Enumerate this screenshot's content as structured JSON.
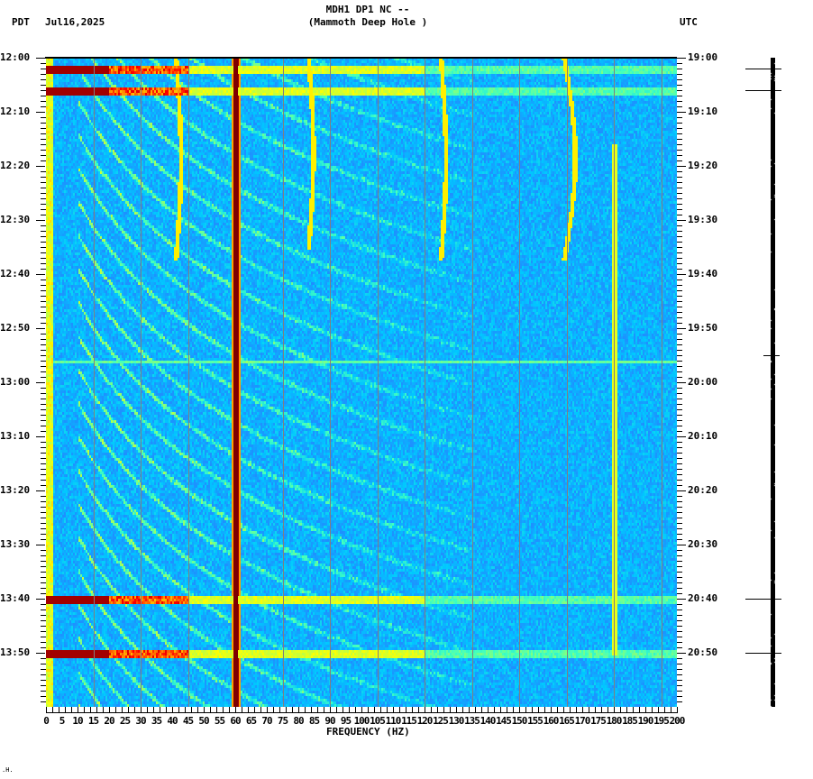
{
  "header": {
    "station_line": "MDH1 DP1 NC --",
    "site_line": "(Mammoth Deep Hole )",
    "left_timezone": "PDT",
    "date": "Jul16,2025",
    "right_timezone": "UTC"
  },
  "footer": {
    "corner_mark": ".H."
  },
  "chart_data": {
    "type": "heatmap",
    "title": "MDH1 DP1 NC -- (Mammoth Deep Hole )",
    "subtitle": "Jul16,2025",
    "xlabel": "FREQUENCY (HZ)",
    "ylabel_left": "PDT",
    "ylabel_right": "UTC",
    "x_range": [
      0,
      200
    ],
    "x_tick_labels": [
      "0",
      "5",
      "10",
      "15",
      "20",
      "25",
      "30",
      "35",
      "40",
      "45",
      "50",
      "55",
      "60",
      "65",
      "70",
      "75",
      "80",
      "85",
      "90",
      "95",
      "100",
      "105",
      "110",
      "115",
      "120",
      "125",
      "130",
      "135",
      "140",
      "145",
      "150",
      "155",
      "160",
      "165",
      "170",
      "175",
      "180",
      "185",
      "190",
      "195",
      "200"
    ],
    "y_range_local": [
      "12:00",
      "14:00"
    ],
    "y_tick_labels_left": [
      "12:00",
      "12:10",
      "12:20",
      "12:30",
      "12:40",
      "12:50",
      "13:00",
      "13:10",
      "13:20",
      "13:30",
      "13:40",
      "13:50"
    ],
    "y_tick_labels_right": [
      "19:00",
      "19:10",
      "19:20",
      "19:30",
      "19:40",
      "19:50",
      "20:00",
      "20:10",
      "20:20",
      "20:30",
      "20:40",
      "20:50"
    ],
    "colormap": [
      "#00008f",
      "#0050ff",
      "#1e90ff",
      "#00c8ff",
      "#40ffc0",
      "#c0ff40",
      "#ffff00",
      "#ff8000",
      "#ff0000",
      "#800000"
    ],
    "grid": {
      "vertical_lines_every_hz": 15,
      "color": "#808080"
    },
    "features": {
      "constant_line_hz": 60,
      "broadband_events_local": [
        "12:02",
        "12:06",
        "13:40",
        "13:50"
      ],
      "broadband_events_strong_low_freq_hz_max": 20,
      "short_event_local": "12:56",
      "wandering_tones": [
        {
          "name": "tone-a",
          "hz_start": 41,
          "time_range": [
            "12:00",
            "12:37"
          ]
        },
        {
          "name": "tone-b",
          "hz_start": 83,
          "time_range": [
            "12:00",
            "12:35"
          ]
        },
        {
          "name": "tone-c",
          "hz_start": 125,
          "time_range": [
            "12:00",
            "12:37"
          ]
        },
        {
          "name": "tone-d",
          "hz_start": 164,
          "time_range": [
            "12:00",
            "12:37"
          ]
        },
        {
          "name": "tone-e",
          "hz_start": 180,
          "time_range": [
            "12:16",
            "13:50"
          ]
        }
      ],
      "curved_arcs": "repeating curved harmonic arcs sweeping from low to high frequency, roughly every 6 minutes"
    }
  },
  "trace": {
    "event_marker_times_local": [
      "12:02",
      "12:06",
      "12:55",
      "13:40",
      "13:50"
    ]
  }
}
